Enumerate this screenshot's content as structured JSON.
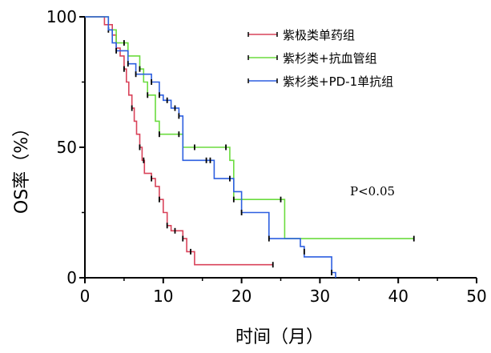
{
  "chart_data": {
    "type": "line",
    "subtype": "kaplan-meier-step",
    "xlabel": "时间（月）",
    "ylabel": "OS率（%）",
    "xlim": [
      0,
      50
    ],
    "ylim": [
      0,
      100
    ],
    "xticks": [
      "0",
      "10",
      "20",
      "30",
      "40",
      "50"
    ],
    "yticks": [
      "0",
      "50",
      "100"
    ],
    "grid": false,
    "legend_position": "top-right",
    "annotation": "P<0.05",
    "annotation_display": "P<0.05",
    "series": [
      {
        "name": "紫极类单药组",
        "color": "#d9435a",
        "points": [
          [
            0,
            100
          ],
          [
            2,
            100
          ],
          [
            2.5,
            97
          ],
          [
            3.5,
            93
          ],
          [
            4,
            88
          ],
          [
            4.5,
            85
          ],
          [
            5,
            80
          ],
          [
            5.3,
            75
          ],
          [
            5.6,
            70
          ],
          [
            6,
            65
          ],
          [
            6.3,
            60
          ],
          [
            6.6,
            55
          ],
          [
            7,
            50
          ],
          [
            7.3,
            45
          ],
          [
            7.6,
            40
          ],
          [
            8,
            40
          ],
          [
            8.5,
            38
          ],
          [
            9,
            35
          ],
          [
            9.5,
            30
          ],
          [
            10,
            25
          ],
          [
            10.5,
            20
          ],
          [
            11,
            18
          ],
          [
            12,
            18
          ],
          [
            12.5,
            15
          ],
          [
            13,
            10
          ],
          [
            14,
            5
          ],
          [
            24,
            5
          ]
        ],
        "censors": [
          [
            5,
            80
          ],
          [
            6,
            65
          ],
          [
            7,
            50
          ],
          [
            7.5,
            45
          ],
          [
            8.5,
            38
          ],
          [
            9.5,
            30
          ],
          [
            10.5,
            20
          ],
          [
            11.5,
            18
          ],
          [
            12.5,
            15
          ],
          [
            13.5,
            10
          ],
          [
            24,
            5
          ]
        ]
      },
      {
        "name": "紫杉类+抗血管组",
        "color": "#6bdc3f",
        "points": [
          [
            0,
            100
          ],
          [
            2.5,
            100
          ],
          [
            3,
            95
          ],
          [
            4,
            90
          ],
          [
            5,
            90
          ],
          [
            5.5,
            85
          ],
          [
            7,
            80
          ],
          [
            7.5,
            75
          ],
          [
            8,
            70
          ],
          [
            9,
            60
          ],
          [
            9.5,
            55
          ],
          [
            12,
            55
          ],
          [
            12.5,
            50
          ],
          [
            18,
            50
          ],
          [
            18.5,
            45
          ],
          [
            19,
            30
          ],
          [
            25,
            30
          ],
          [
            25.5,
            15
          ],
          [
            42,
            15
          ]
        ],
        "censors": [
          [
            3,
            95
          ],
          [
            5,
            90
          ],
          [
            7,
            80
          ],
          [
            8,
            70
          ],
          [
            9.5,
            55
          ],
          [
            12,
            55
          ],
          [
            14,
            50
          ],
          [
            18,
            50
          ],
          [
            19,
            30
          ],
          [
            25,
            30
          ],
          [
            42,
            15
          ]
        ]
      },
      {
        "name": "紫杉类+PD-1单抗组",
        "color": "#2d5fe0",
        "points": [
          [
            0,
            100
          ],
          [
            2.5,
            100
          ],
          [
            3,
            95
          ],
          [
            3.5,
            90
          ],
          [
            4,
            87
          ],
          [
            5,
            87
          ],
          [
            5.5,
            82
          ],
          [
            6,
            82
          ],
          [
            6.5,
            78
          ],
          [
            8,
            78
          ],
          [
            8.5,
            75
          ],
          [
            9.5,
            70
          ],
          [
            10,
            68
          ],
          [
            11,
            65
          ],
          [
            12,
            62
          ],
          [
            12.5,
            45
          ],
          [
            16,
            45
          ],
          [
            16.5,
            38
          ],
          [
            18.5,
            38
          ],
          [
            19,
            33
          ],
          [
            20,
            25
          ],
          [
            23,
            25
          ],
          [
            23.5,
            15
          ],
          [
            27.5,
            12
          ],
          [
            28,
            8
          ],
          [
            31,
            8
          ],
          [
            31.5,
            2
          ],
          [
            32,
            0
          ]
        ],
        "censors": [
          [
            4,
            87
          ],
          [
            5.5,
            82
          ],
          [
            6.5,
            78
          ],
          [
            8.5,
            75
          ],
          [
            9.5,
            70
          ],
          [
            10.5,
            68
          ],
          [
            11.5,
            65
          ],
          [
            12,
            62
          ],
          [
            15.5,
            45
          ],
          [
            16,
            45
          ],
          [
            18.5,
            38
          ],
          [
            20,
            25
          ],
          [
            23.5,
            15
          ],
          [
            28,
            10
          ],
          [
            31.5,
            2
          ]
        ]
      }
    ]
  }
}
